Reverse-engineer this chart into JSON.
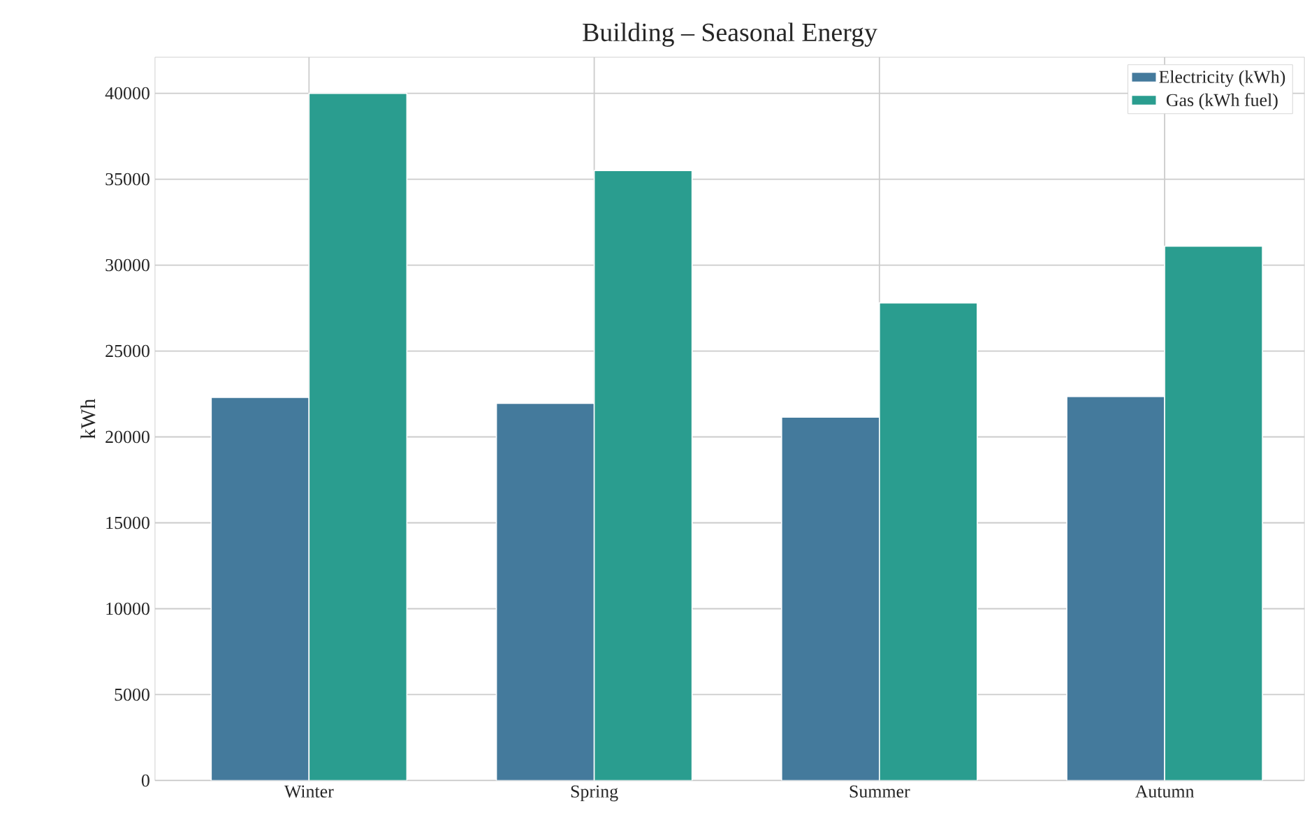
{
  "chart_data": {
    "type": "bar",
    "title": "Building – Seasonal Energy",
    "ylabel": "kWh",
    "categories": [
      "Winter",
      "Spring",
      "Summer",
      "Autumn"
    ],
    "series": [
      {
        "name": "Electricity (kWh)",
        "color": "#447a9c",
        "values": [
          22300,
          21950,
          21150,
          22350
        ]
      },
      {
        "name": "Gas (kWh fuel)",
        "color": "#2a9d8f",
        "values": [
          40000,
          35500,
          27800,
          31100
        ]
      }
    ],
    "ylim": [
      0,
      42100
    ],
    "yticks": [
      0,
      5000,
      10000,
      15000,
      20000,
      25000,
      30000,
      35000,
      40000
    ],
    "grid": true,
    "legend": "top right"
  }
}
